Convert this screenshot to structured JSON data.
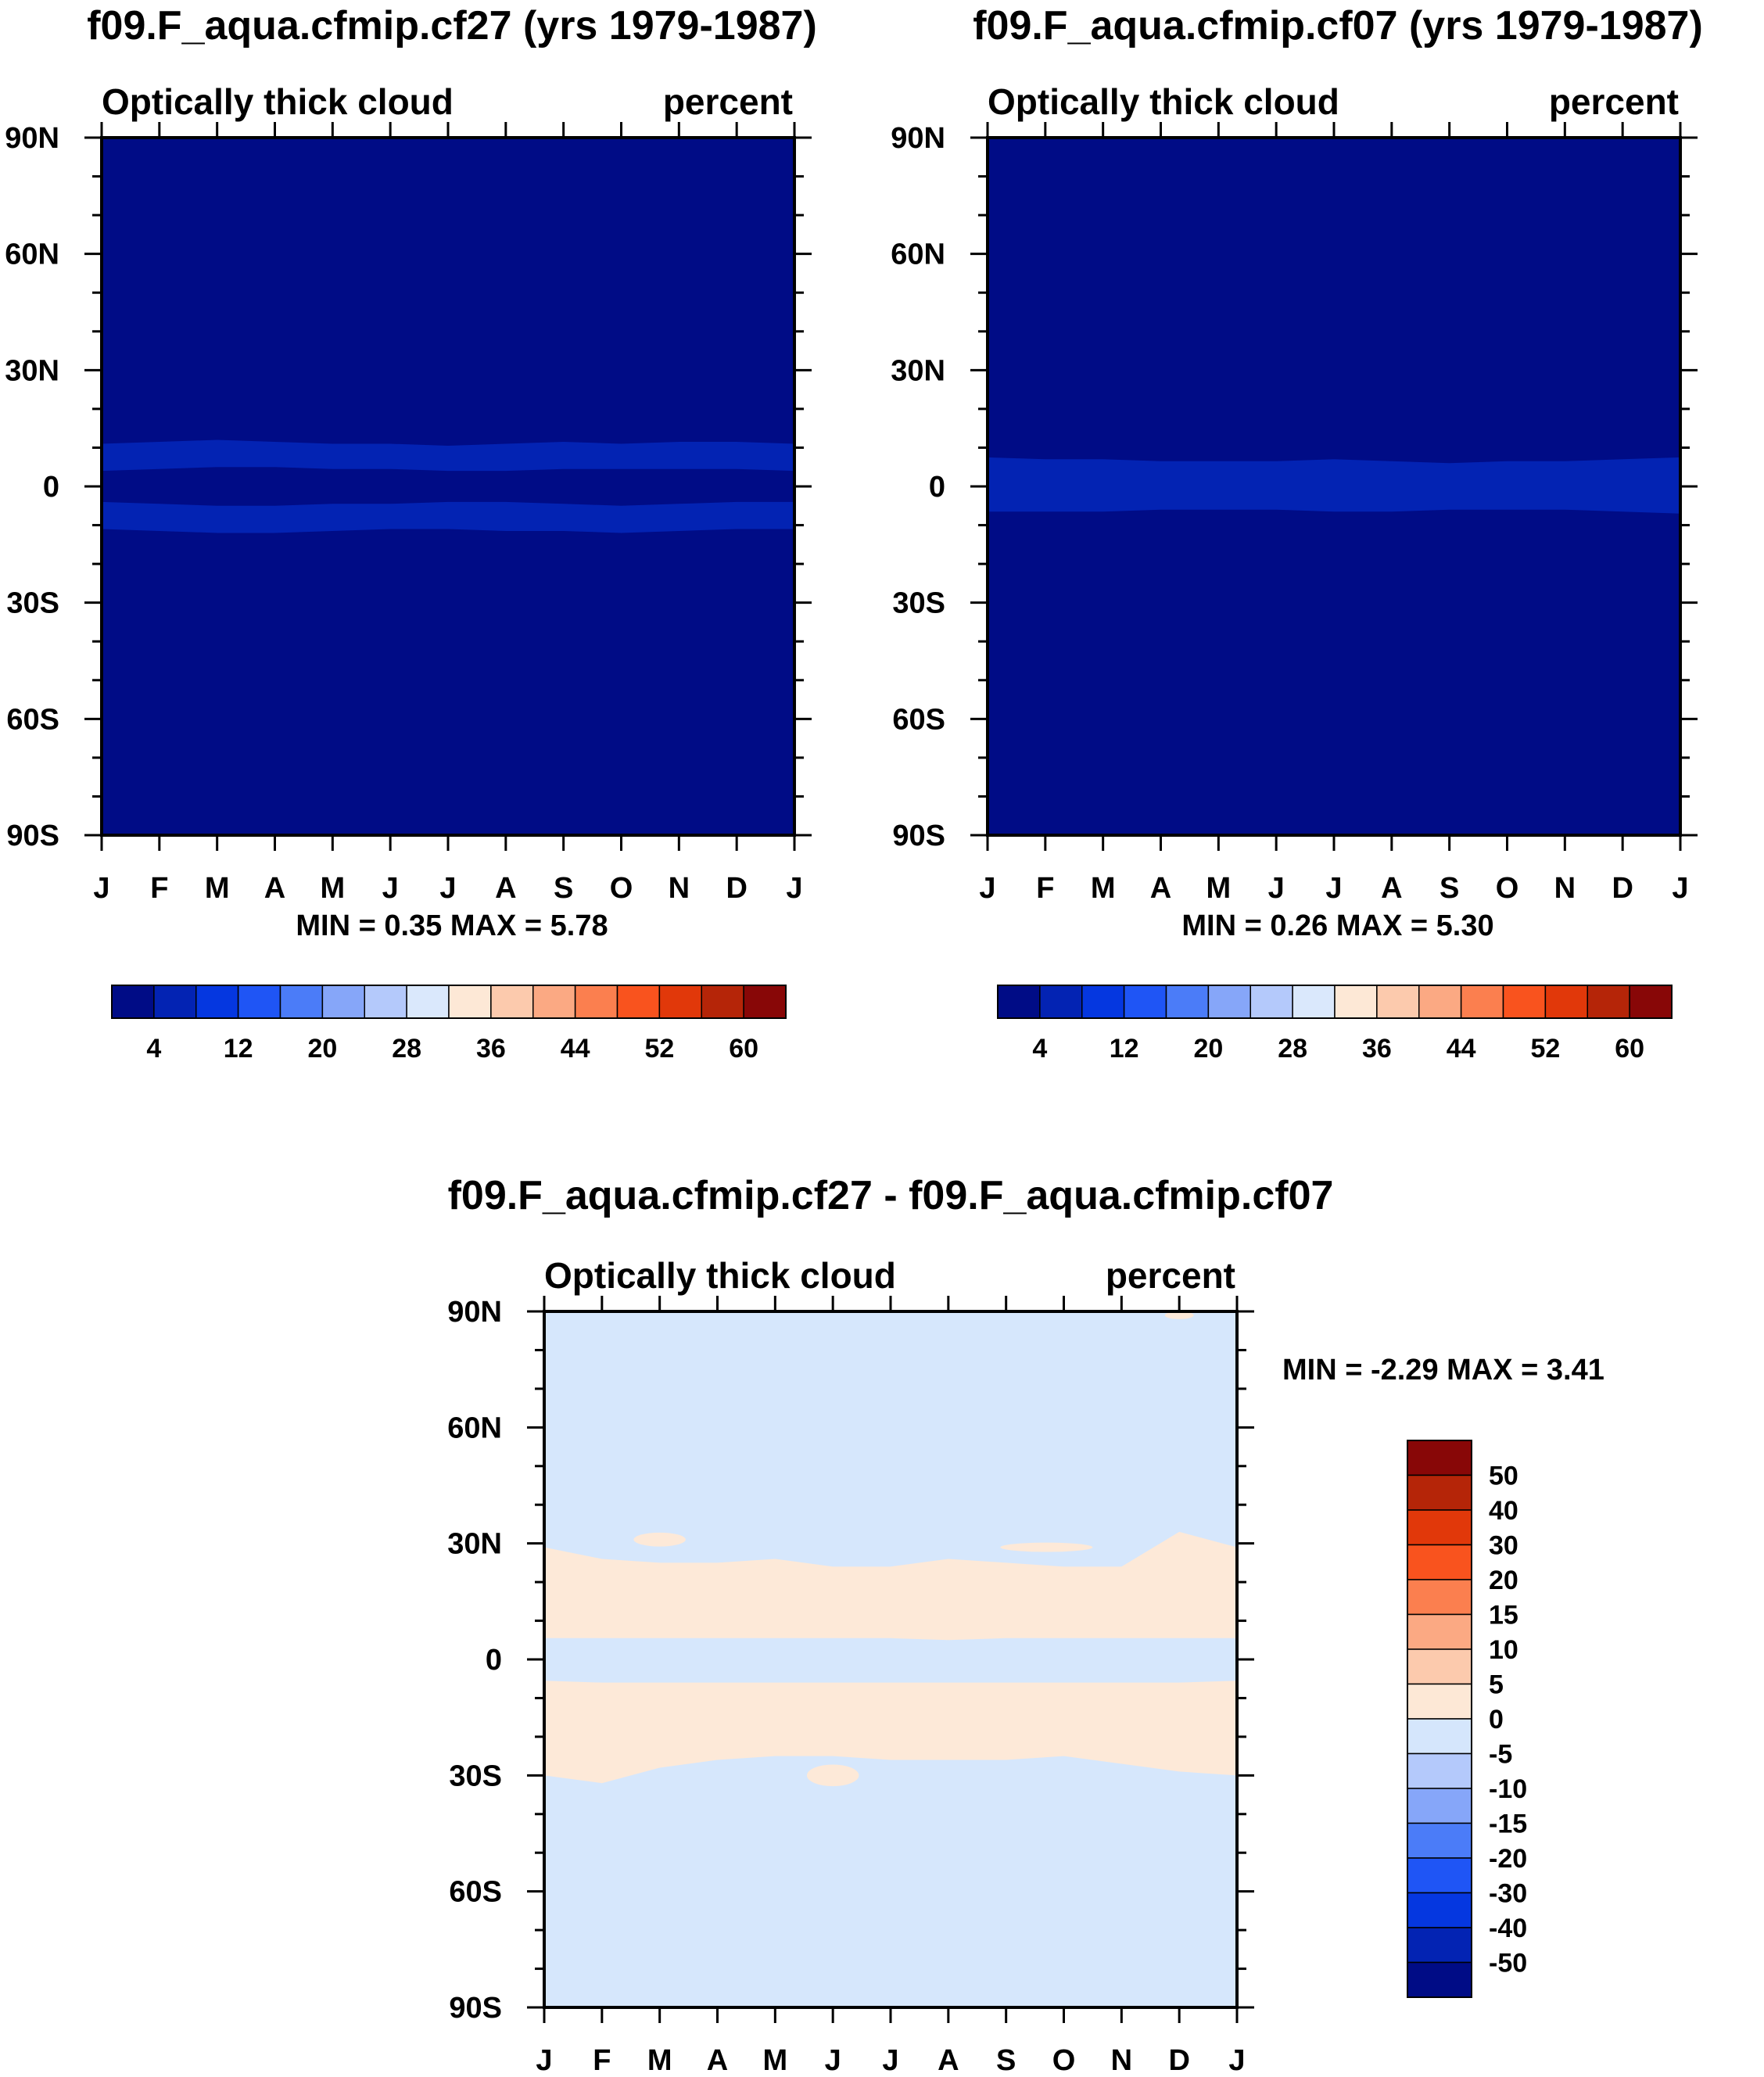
{
  "colors": {
    "seq": [
      "#000c86",
      "#0323b3",
      "#0537e0",
      "#1f55f5",
      "#4b7cf8",
      "#86a6f9",
      "#b4c9fb",
      "#dae8fc",
      "#fde8d6",
      "#fccaad",
      "#fba983",
      "#fb7f4f",
      "#f9531e",
      "#e1380a",
      "#b52508",
      "#880707"
    ],
    "div": [
      "#000c86",
      "#0323b3",
      "#0537e0",
      "#1f55f5",
      "#4b7cf8",
      "#86a6f9",
      "#b4c9fb",
      "#d5e6fc",
      "#fde8d6",
      "#fccaad",
      "#fba983",
      "#fb7f4f",
      "#f9531e",
      "#e1380a",
      "#b52508",
      "#880707"
    ],
    "panel_bg": "#000c86",
    "panel_band": "#0323b3",
    "diff_bg": "#d6e7fc",
    "diff_pos": "#fde9d8"
  },
  "chart_data": [
    {
      "id": "panel-a",
      "type": "heatmap",
      "title": "f09.F_aqua.cfmip.cf27 (yrs 1979-1987)",
      "left_string": "Optically thick cloud",
      "right_string": "percent",
      "x_tick_labels": [
        "J",
        "F",
        "M",
        "A",
        "M",
        "J",
        "J",
        "A",
        "S",
        "O",
        "N",
        "D",
        "J"
      ],
      "y_tick_labels": [
        "90N",
        "60N",
        "30N",
        "0",
        "30S",
        "60S",
        "90S"
      ],
      "y_range": [
        -90,
        90
      ],
      "min_label": "MIN =",
      "min_value": "0.35",
      "max_label": "MAX =",
      "max_value": "5.78",
      "colorbar_labels": [
        "4",
        "12",
        "20",
        "28",
        "36",
        "44",
        "52",
        "60"
      ],
      "bands": [
        {
          "lat_north": [
            11,
            11.5,
            12,
            11.5,
            11,
            11,
            10.5,
            11,
            11.5,
            11,
            11.5,
            11.5,
            11
          ],
          "lat_south": [
            4,
            4.5,
            5,
            5,
            4.5,
            4.5,
            4,
            4,
            4.5,
            4.5,
            4.5,
            4.5,
            4
          ]
        },
        {
          "lat_north": [
            -4,
            -4.5,
            -5,
            -5,
            -4.5,
            -4.5,
            -4,
            -4,
            -4.5,
            -5,
            -4.5,
            -4,
            -4
          ],
          "lat_south": [
            -11,
            -11.5,
            -12,
            -12,
            -11.5,
            -11,
            -11,
            -11.5,
            -11.5,
            -12,
            -11.5,
            -11,
            -11
          ]
        }
      ]
    },
    {
      "id": "panel-b",
      "type": "heatmap",
      "title": "f09.F_aqua.cfmip.cf07 (yrs 1979-1987)",
      "left_string": "Optically thick cloud",
      "right_string": "percent",
      "x_tick_labels": [
        "J",
        "F",
        "M",
        "A",
        "M",
        "J",
        "J",
        "A",
        "S",
        "O",
        "N",
        "D",
        "J"
      ],
      "y_tick_labels": [
        "90N",
        "60N",
        "30N",
        "0",
        "30S",
        "60S",
        "90S"
      ],
      "y_range": [
        -90,
        90
      ],
      "min_label": "MIN =",
      "min_value": "0.26",
      "max_label": "MAX =",
      "max_value": "5.30",
      "colorbar_labels": [
        "4",
        "12",
        "20",
        "28",
        "36",
        "44",
        "52",
        "60"
      ],
      "bands": [
        {
          "lat_north": [
            7.5,
            7,
            7,
            6.5,
            6.5,
            6.5,
            7,
            6.5,
            6,
            6.5,
            6.5,
            7,
            7.5
          ],
          "lat_south": [
            -6.5,
            -6.5,
            -6.5,
            -6,
            -6,
            -6,
            -6.5,
            -6.5,
            -6,
            -6,
            -6,
            -6.5,
            -7
          ]
        }
      ]
    },
    {
      "id": "panel-c",
      "type": "heatmap",
      "title": "f09.F_aqua.cfmip.cf27 - f09.F_aqua.cfmip.cf07",
      "left_string": "Optically thick cloud",
      "right_string": "percent",
      "x_tick_labels": [
        "J",
        "F",
        "M",
        "A",
        "M",
        "J",
        "J",
        "A",
        "S",
        "O",
        "N",
        "D",
        "J"
      ],
      "y_tick_labels": [
        "90N",
        "60N",
        "30N",
        "0",
        "30S",
        "60S",
        "90S"
      ],
      "y_range": [
        -90,
        90
      ],
      "min_label": "MIN =",
      "min_value": "-2.29",
      "max_label": "MAX =",
      "max_value": "3.41",
      "colorbar_labels": [
        "50",
        "40",
        "30",
        "20",
        "15",
        "10",
        "5",
        "0",
        "-5",
        "-10",
        "-15",
        "-20",
        "-30",
        "-40",
        "-50"
      ],
      "positive_bands": [
        {
          "lat_north": [
            29,
            26,
            25,
            25,
            26,
            24,
            24,
            26,
            25,
            24,
            24,
            33,
            29
          ],
          "lat_south": [
            5.5,
            5.5,
            5.5,
            5.5,
            5.5,
            5.5,
            5.5,
            5,
            5.5,
            5.5,
            5.5,
            5.5,
            5.5
          ]
        },
        {
          "lat_north": [
            -5.5,
            -6,
            -6,
            -6,
            -6,
            -6,
            -6,
            -6,
            -6,
            -6,
            -6,
            -6,
            -5.5
          ],
          "lat_south": [
            -30,
            -32,
            -28,
            -26,
            -25,
            -25,
            -26,
            -26,
            -26,
            -25,
            -27,
            -29,
            -30
          ]
        }
      ],
      "positive_blobs": [
        {
          "month": 2.0,
          "lat": 31,
          "dmonth": 0.45,
          "dlat": 1.8
        },
        {
          "month": 5.0,
          "lat": -30,
          "dmonth": 0.45,
          "dlat": 2.8
        },
        {
          "month": 8.7,
          "lat": 29,
          "dmonth": 0.8,
          "dlat": 1.2
        },
        {
          "month": 11.0,
          "lat": 89,
          "dmonth": 0.25,
          "dlat": 1
        }
      ]
    }
  ]
}
